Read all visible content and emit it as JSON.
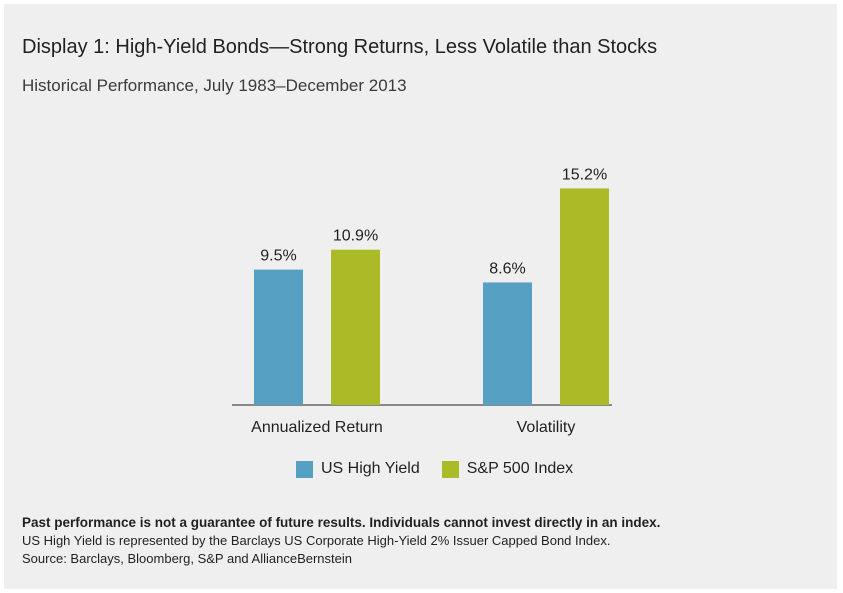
{
  "header": {
    "title": "Display 1: High-Yield Bonds—Strong Returns, Less Volatile than Stocks",
    "subtitle": "Historical Performance, July 1983–December 2013"
  },
  "chart_data": {
    "type": "bar",
    "categories": [
      "Annualized Return",
      "Volatility"
    ],
    "series": [
      {
        "name": "US High Yield",
        "values": [
          9.5,
          8.6
        ],
        "labels": [
          "9.5%",
          "8.6%"
        ],
        "color": "#56a0c4"
      },
      {
        "name": "S&P 500 Index",
        "values": [
          10.9,
          15.2
        ],
        "labels": [
          "10.9%",
          "15.2%"
        ],
        "color": "#abbb27"
      }
    ],
    "unit": "%",
    "ylim": [
      0,
      16
    ],
    "grid": false,
    "legend_position": "bottom"
  },
  "footer": {
    "disclaimer": "Past performance is not a guarantee of future results. Individuals cannot invest directly in an index.",
    "index_note": "US High Yield is represented by the Barclays US Corporate High-Yield 2% Issuer Capped Bond Index.",
    "source": "Source: Barclays, Bloomberg, S&P and AllianceBernstein"
  }
}
